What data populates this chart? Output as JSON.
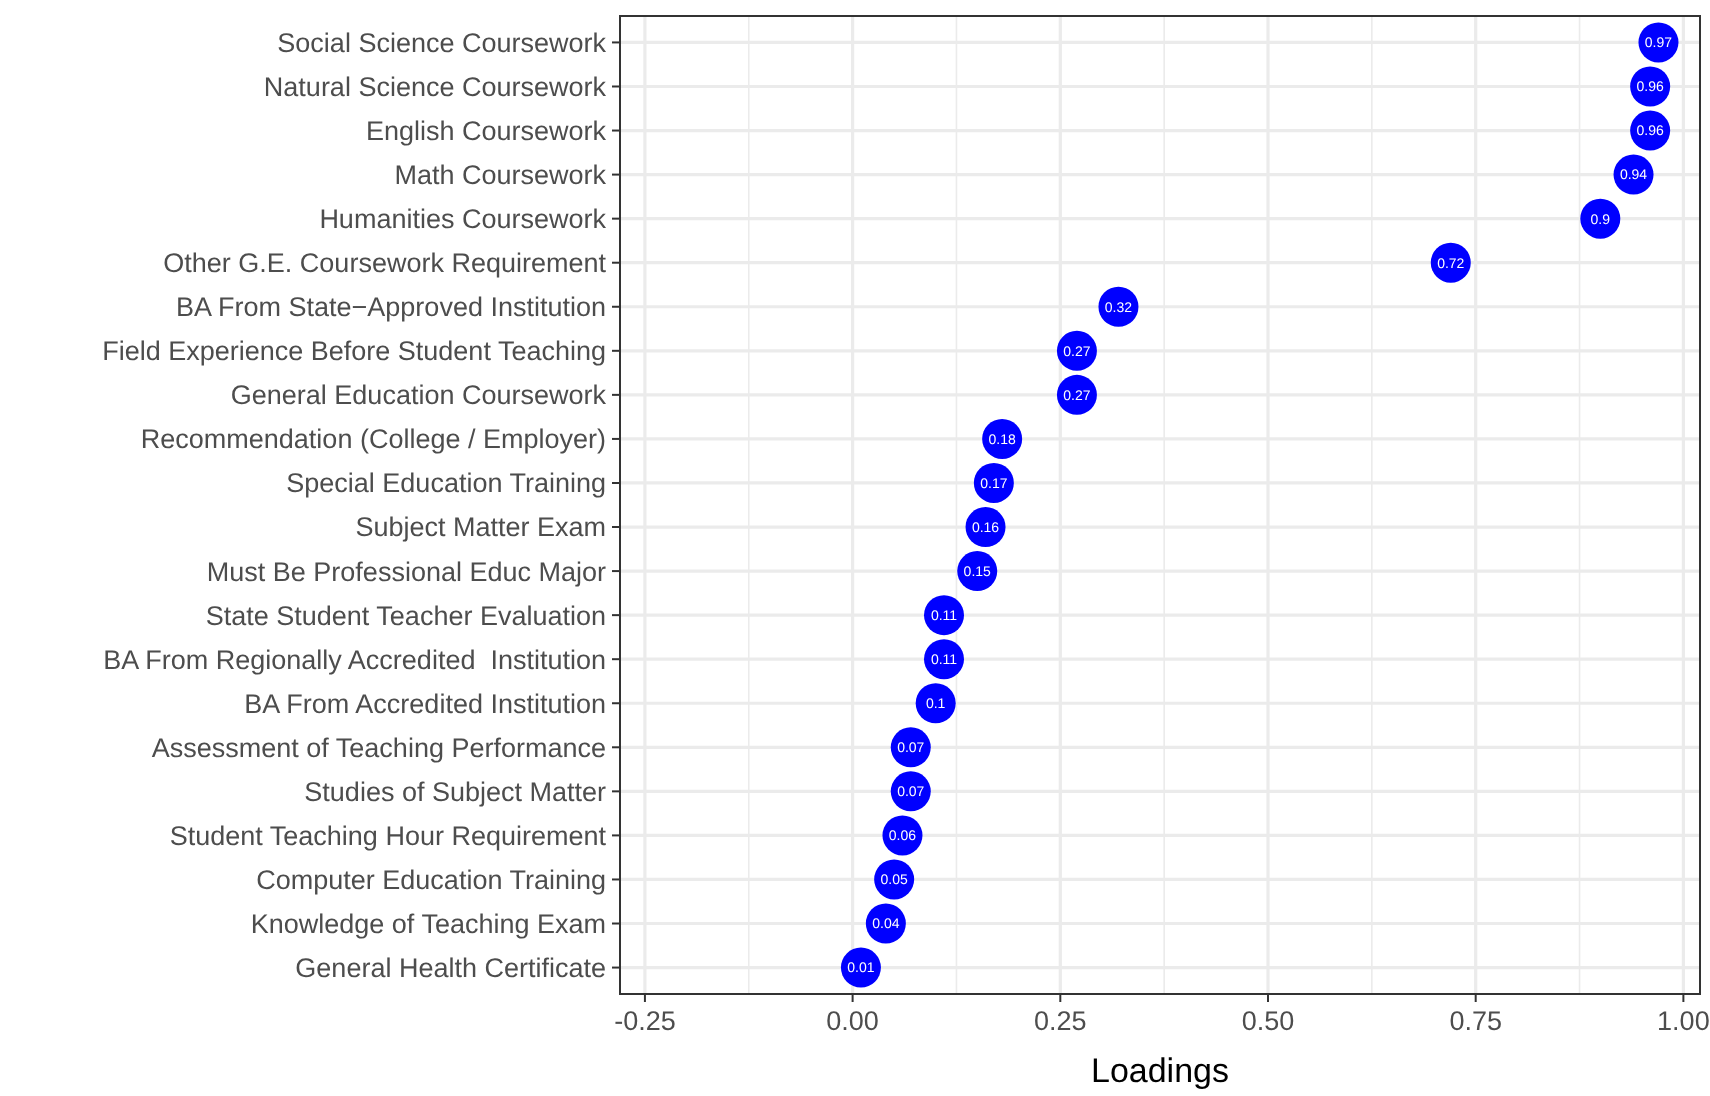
{
  "chart_data": {
    "type": "scatter",
    "orientation": "horizontal",
    "xlabel": "Loadings",
    "categories": [
      "Social Science Coursework",
      "Natural Science Coursework",
      "English Coursework",
      "Math Coursework",
      "Humanities Coursework",
      "Other G.E. Coursework Requirement",
      "BA From State−Approved Institution",
      "Field Experience Before Student Teaching",
      "General Education Coursework",
      "Recommendation (College / Employer)",
      "Special Education Training",
      "Subject Matter Exam",
      "Must Be Professional Educ Major",
      "State Student Teacher Evaluation",
      "BA From Regionally Accredited  Institution",
      "BA From Accredited Institution",
      "Assessment of Teaching Performance",
      "Studies of Subject Matter",
      "Student Teaching Hour Requirement",
      "Computer Education Training",
      "Knowledge of Teaching Exam",
      "General Health Certificate"
    ],
    "values": [
      0.97,
      0.96,
      0.96,
      0.94,
      0.9,
      0.72,
      0.32,
      0.27,
      0.27,
      0.18,
      0.17,
      0.16,
      0.15,
      0.11,
      0.11,
      0.1,
      0.07,
      0.07,
      0.06,
      0.05,
      0.04,
      0.01
    ],
    "color": "#0000ff",
    "marker": "circle",
    "data_labels": true,
    "xlim": [
      -0.28,
      1.02
    ],
    "xticks": [
      {
        "value": -0.25,
        "label": "-0.25"
      },
      {
        "value": 0,
        "label": "0.00"
      },
      {
        "value": 0.25,
        "label": "0.25"
      },
      {
        "value": 0.5,
        "label": "0.50"
      },
      {
        "value": 0.75,
        "label": "0.75"
      },
      {
        "value": 1,
        "label": "1.00"
      }
    ],
    "grid": true
  }
}
